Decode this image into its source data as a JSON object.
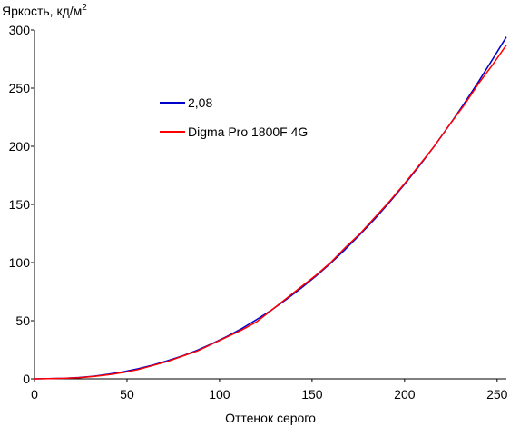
{
  "chart_data": {
    "type": "line",
    "ylabel_main": "Яркость, кд/м",
    "ylabel_sup": "2",
    "xlabel": "Оттенок серого",
    "xlim": [
      0,
      255
    ],
    "ylim": [
      0,
      300
    ],
    "xticks": [
      0,
      50,
      100,
      150,
      200,
      250
    ],
    "yticks": [
      0,
      50,
      100,
      150,
      200,
      250,
      300
    ],
    "grid": false,
    "legend_position": "upper-left-inside",
    "series": [
      {
        "name": "2,08",
        "color": "#0000cc",
        "x": [
          0,
          16,
          24,
          32,
          40,
          48,
          56,
          64,
          72,
          80,
          88,
          96,
          104,
          112,
          120,
          128,
          136,
          144,
          152,
          160,
          168,
          176,
          184,
          192,
          200,
          208,
          216,
          224,
          232,
          240,
          248,
          255
        ],
        "y": [
          0,
          0.5,
          1.2,
          2.3,
          4.0,
          6.1,
          8.7,
          11.9,
          15.6,
          19.8,
          24.7,
          30.3,
          36.5,
          43.3,
          50.9,
          59.1,
          68.1,
          77.8,
          88.2,
          99.4,
          111.4,
          124.2,
          137.7,
          152.1,
          167.3,
          183.3,
          200.1,
          217.8,
          236.3,
          255.7,
          275.9,
          294.0
        ]
      },
      {
        "name": "Digma Pro 1800F 4G",
        "color": "#ff0000",
        "x": [
          0,
          8,
          16,
          24,
          32,
          40,
          48,
          56,
          64,
          72,
          80,
          88,
          96,
          104,
          112,
          120,
          128,
          136,
          144,
          152,
          160,
          168,
          176,
          184,
          192,
          200,
          208,
          216,
          224,
          232,
          240,
          248,
          255
        ],
        "y": [
          0,
          0.2,
          0.5,
          1.0,
          2.0,
          3.5,
          5.5,
          8.0,
          11.5,
          15.0,
          19.5,
          24.0,
          30.0,
          36.0,
          42.0,
          49.0,
          59.0,
          69.0,
          79.0,
          89.0,
          100.0,
          113.0,
          125.0,
          139.0,
          153.0,
          168.0,
          184.0,
          200.0,
          218.0,
          235.0,
          254.0,
          271.0,
          287.0
        ]
      }
    ]
  }
}
